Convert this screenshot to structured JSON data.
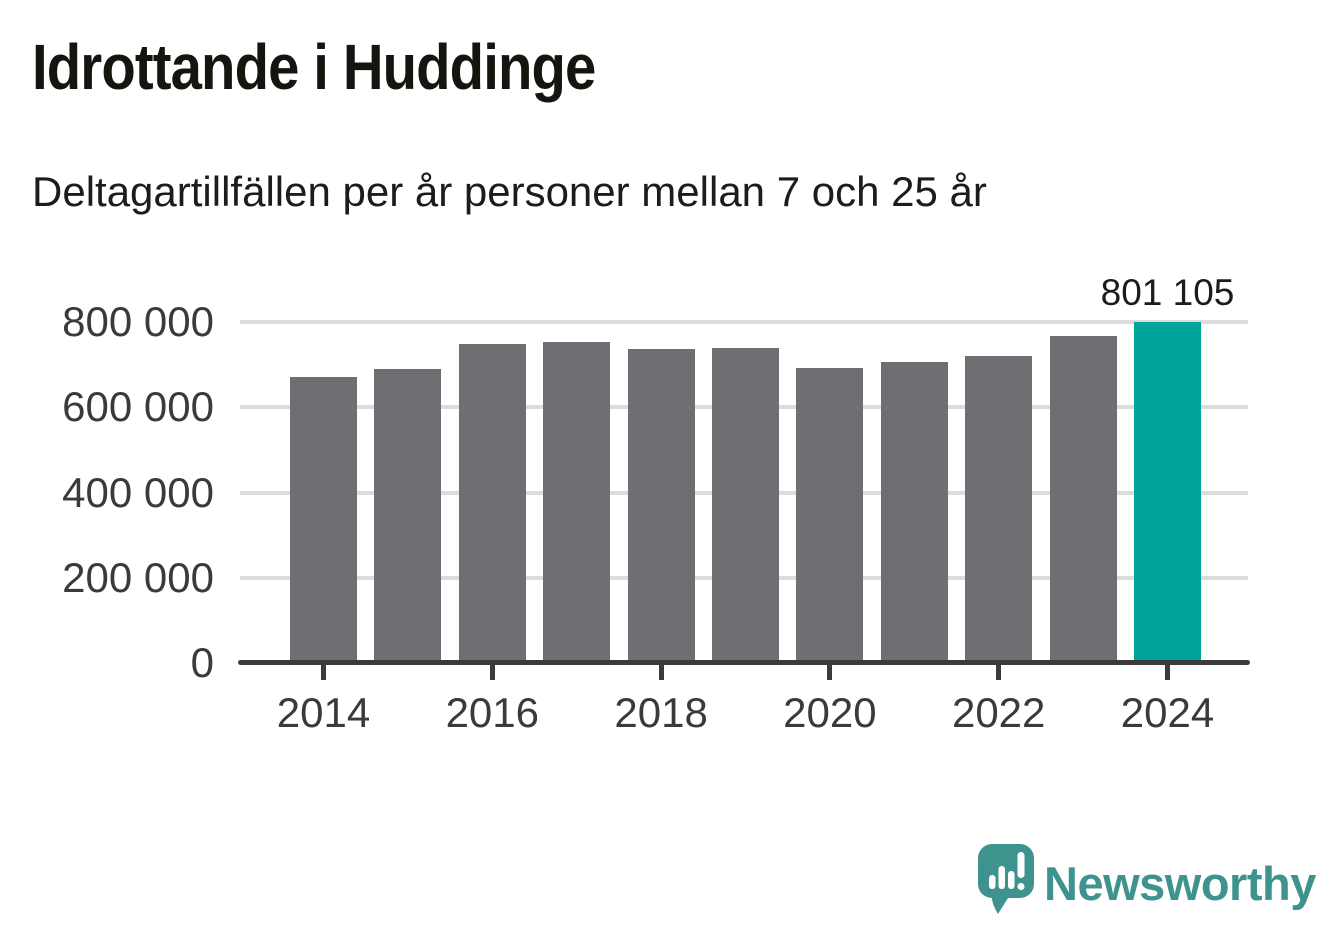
{
  "title": "Idrottande i Huddinge",
  "subtitle": "Deltagartillfällen per år personer mellan 7 och 25 år",
  "brand": {
    "name": "Newsworthy",
    "icon": "speech-bubble-bar-chart-icon"
  },
  "colors": {
    "bar": "#6e6e73",
    "highlight": "#00a49a",
    "grid": "#dcdcdc",
    "axis": "#3b3b3b",
    "text": "#1c1c1c",
    "brand": "#3f938e"
  },
  "chart_data": {
    "type": "bar",
    "title": "Idrottande i Huddinge",
    "subtitle": "Deltagartillfällen per år personer mellan 7 och 25 år",
    "xlabel": "",
    "ylabel": "",
    "categories": [
      "2014",
      "2015",
      "2016",
      "2017",
      "2018",
      "2019",
      "2020",
      "2021",
      "2022",
      "2023",
      "2024"
    ],
    "values": [
      670000,
      690000,
      748000,
      754000,
      736000,
      738000,
      693000,
      705000,
      720000,
      766000,
      801105
    ],
    "highlight_index": 10,
    "data_label": {
      "index": 10,
      "text": "801 105"
    },
    "ylim": [
      0,
      820000
    ],
    "yticks": [
      {
        "value": 0,
        "label": "0",
        "grid": false
      },
      {
        "value": 200000,
        "label": "200 000",
        "grid": true
      },
      {
        "value": 400000,
        "label": "400 000",
        "grid": true
      },
      {
        "value": 600000,
        "label": "600 000",
        "grid": true
      },
      {
        "value": 800000,
        "label": "800 000",
        "grid": true
      }
    ],
    "xtick_labels": [
      "2014",
      "2016",
      "2018",
      "2020",
      "2022",
      "2024"
    ],
    "legend": null,
    "grid": "horizontal"
  }
}
